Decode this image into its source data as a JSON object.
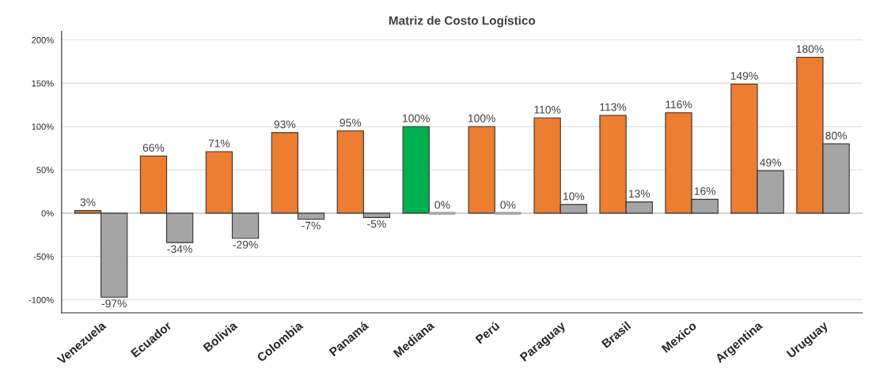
{
  "chart_data": {
    "type": "bar",
    "title": "Matriz de Costo Logístico",
    "categories": [
      "Venezuela",
      "Ecuador",
      "Bolivia",
      "Colombia",
      "Panamá",
      "Mediana",
      "Perú",
      "Paraguay",
      "Brasil",
      "Mexico",
      "Argentina",
      "Uruguay"
    ],
    "series": [
      {
        "colors": [
          "#ed7d31",
          "#ed7d31",
          "#ed7d31",
          "#ed7d31",
          "#ed7d31",
          "#00b050",
          "#ed7d31",
          "#ed7d31",
          "#ed7d31",
          "#ed7d31",
          "#ed7d31",
          "#ed7d31"
        ],
        "values": [
          3,
          66,
          71,
          93,
          95,
          100,
          100,
          110,
          113,
          116,
          149,
          180
        ],
        "value_labels": [
          "3%",
          "66%",
          "71%",
          "93%",
          "95%",
          "100%",
          "100%",
          "110%",
          "113%",
          "116%",
          "149%",
          "180%"
        ]
      },
      {
        "color": "#a5a5a5",
        "values": [
          -97,
          -34,
          -29,
          -7,
          -5,
          0,
          0,
          10,
          13,
          16,
          49,
          80
        ],
        "value_labels": [
          "-97%",
          "-34%",
          "-29%",
          "-7%",
          "-5%",
          "0%",
          "0%",
          "10%",
          "13%",
          "16%",
          "49%",
          "80%"
        ]
      }
    ],
    "ylim": [
      -115,
      210
    ],
    "yticks": [
      {
        "value": -100,
        "label": "-100%"
      },
      {
        "value": -50,
        "label": "-50%"
      },
      {
        "value": 0,
        "label": "0%"
      },
      {
        "value": 50,
        "label": "50%"
      },
      {
        "value": 100,
        "label": "100%"
      },
      {
        "value": 150,
        "label": "150%"
      },
      {
        "value": 200,
        "label": "200%"
      }
    ],
    "grid": "y",
    "legend": false
  }
}
